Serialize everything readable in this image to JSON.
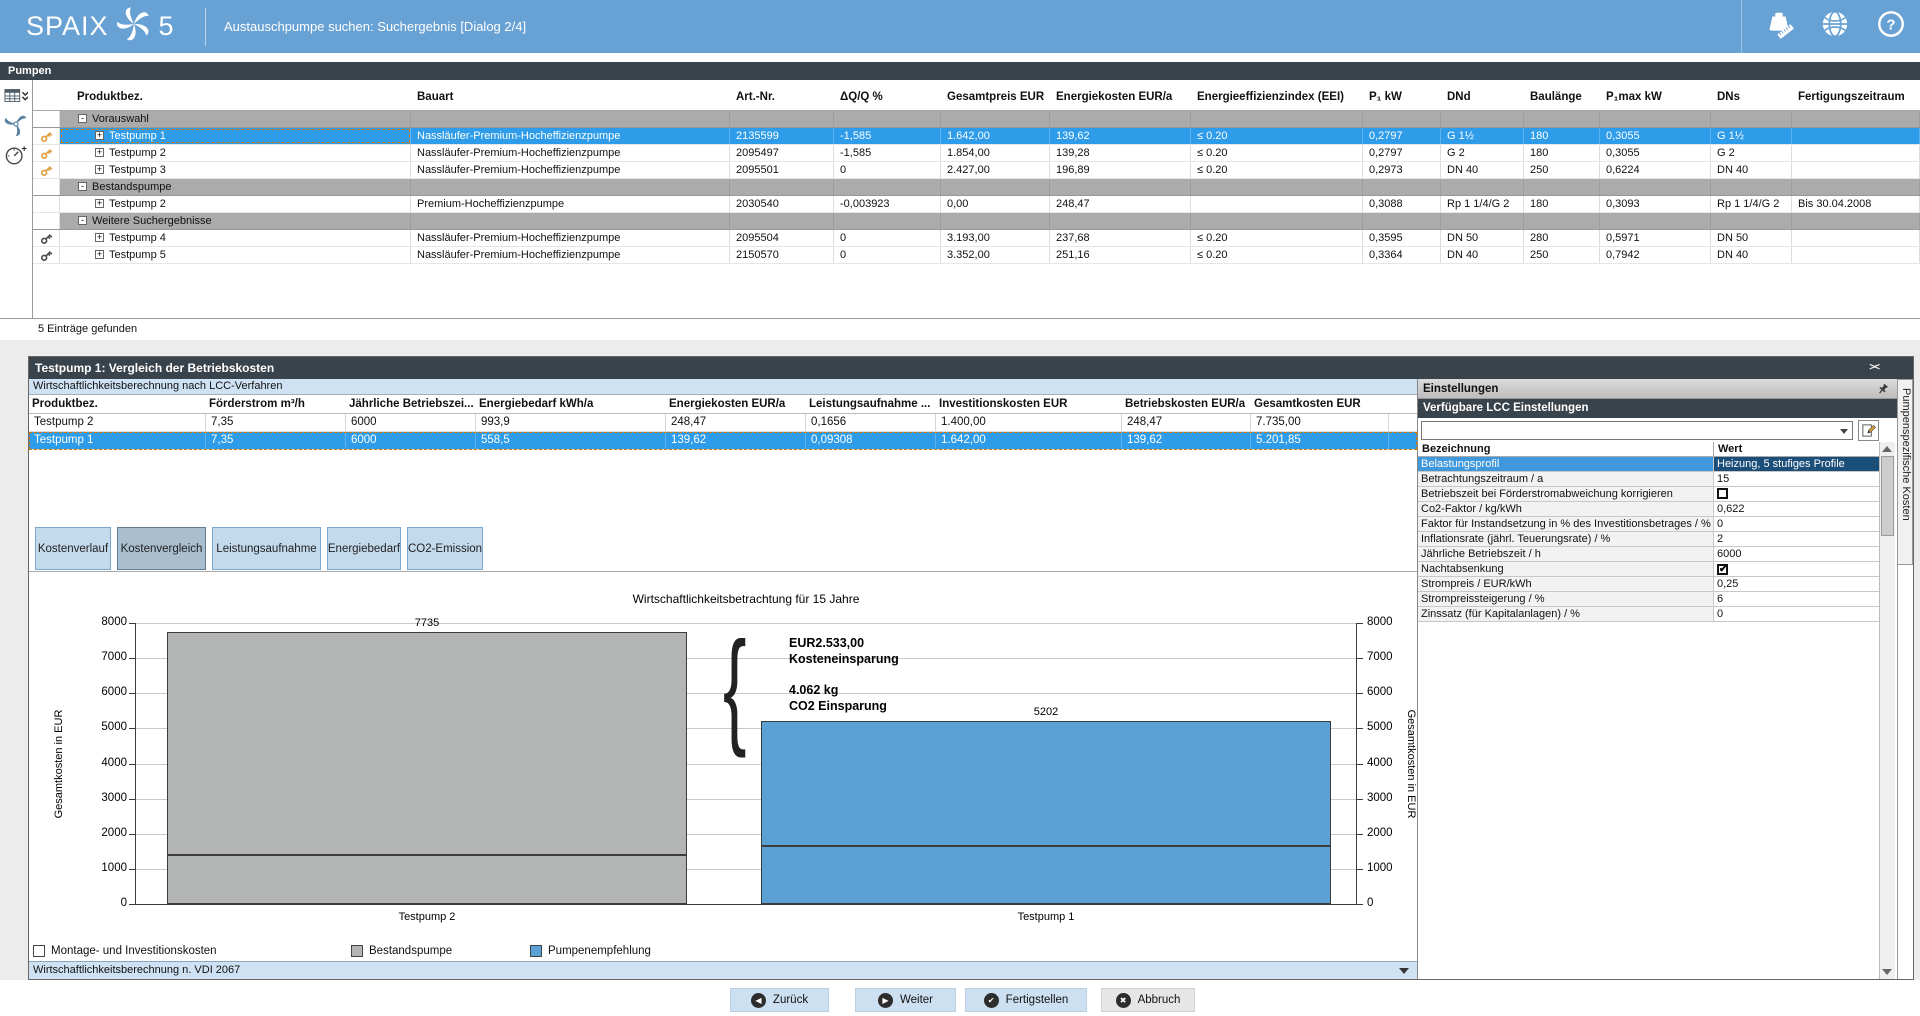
{
  "header": {
    "logo": "SPAIX",
    "logo_number": "5",
    "title": "Austauschpumpe suchen: Suchergebnis [Dialog 2/4]",
    "accent_color": "#68a1d4"
  },
  "tab_bar": {
    "label": "Pumpen"
  },
  "icons": {
    "topbar": [
      "units-icon",
      "globe-icon",
      "help-icon"
    ],
    "toolbar": [
      "table-columns-icon",
      "pump-icon",
      "gauge-plus-icon"
    ],
    "row_key_colors": {
      "orange": "#e09c3c",
      "dark": "#4a4a4a"
    }
  },
  "results_table": {
    "columns": [
      "Produktbez.",
      "Bauart",
      "Art.-Nr.",
      "ΔQ/Q %",
      "Gesamtpreis EUR",
      "Energiekosten EUR/a",
      "Energieeffizienzindex (EEI)",
      "P₁ kW",
      "DNd",
      "Baulänge",
      "P₁max kW",
      "DNs",
      "Fertigungszeitraum"
    ],
    "groups": [
      {
        "label": "Vorauswahl",
        "rows": [
          {
            "name": "Testpump 1",
            "selected": true,
            "key": "orange",
            "cells": [
              "Nassläufer-Premium-Hocheffizienzpumpe",
              "2135599",
              "-1,585",
              "1.642,00",
              "139,62",
              "≤ 0.20",
              "0,2797",
              "G 1½",
              "180",
              "0,3055",
              "G 1½",
              ""
            ]
          },
          {
            "name": "Testpump 2",
            "selected": false,
            "key": "orange",
            "cells": [
              "Nassläufer-Premium-Hocheffizienzpumpe",
              "2095497",
              "-1,585",
              "1.854,00",
              "139,28",
              "≤ 0.20",
              "0,2797",
              "G 2",
              "180",
              "0,3055",
              "G 2",
              ""
            ]
          },
          {
            "name": "Testpump 3",
            "selected": false,
            "key": "orange",
            "cells": [
              "Nassläufer-Premium-Hocheffizienzpumpe",
              "2095501",
              "0",
              "2.427,00",
              "196,89",
              "≤ 0.20",
              "0,2973",
              "DN 40",
              "250",
              "0,6224",
              "DN 40",
              ""
            ]
          }
        ]
      },
      {
        "label": "Bestandspumpe",
        "rows": [
          {
            "name": "Testpump 2",
            "selected": false,
            "key": "none",
            "cells": [
              "Premium-Hocheffizienzpumpe",
              "2030540",
              "-0,003923",
              "0,00",
              "248,47",
              "",
              "0,3088",
              "Rp 1 1/4/G 2",
              "180",
              "0,3093",
              "Rp 1 1/4/G 2",
              "Bis 30.04.2008"
            ]
          }
        ]
      },
      {
        "label": "Weitere Suchergebnisse",
        "rows": [
          {
            "name": "Testpump 4",
            "selected": false,
            "key": "dark",
            "cells": [
              "Nassläufer-Premium-Hocheffizienzpumpe",
              "2095504",
              "0",
              "3.193,00",
              "237,68",
              "≤ 0.20",
              "0,3595",
              "DN 50",
              "280",
              "0,5971",
              "DN 50",
              ""
            ]
          },
          {
            "name": "Testpump 5",
            "selected": false,
            "key": "dark",
            "cells": [
              "Nassläufer-Premium-Hocheffizienzpumpe",
              "2150570",
              "0",
              "3.352,00",
              "251,16",
              "≤ 0.20",
              "0,3364",
              "DN 40",
              "250",
              "0,7942",
              "DN 40",
              ""
            ]
          }
        ]
      }
    ],
    "status": "5 Einträge gefunden"
  },
  "comparison_panel": {
    "title": "Testpump 1: Vergleich der Betriebskosten",
    "subtitle": "Wirtschaftlichkeitsberechnung nach LCC-Verfahren",
    "collapse_glyph": "><",
    "table": {
      "columns": [
        "Produktbez.",
        "Förderstrom m³/h",
        "Jährliche Betriebszei...",
        "Energiebedarf kWh/a",
        "Energiekosten EUR/a",
        "Leistungsaufnahme ...",
        "Investitionskosten EUR",
        "Betriebskosten EUR/a",
        "Gesamtkosten EUR"
      ],
      "rows": [
        {
          "selected": false,
          "cells": [
            "Testpump 2",
            "7,35",
            "6000",
            "993,9",
            "248,47",
            "0,1656",
            "1.400,00",
            "248,47",
            "7.735,00"
          ]
        },
        {
          "selected": true,
          "cells": [
            "Testpump 1",
            "7,35",
            "6000",
            "558,5",
            "139,62",
            "0,09308",
            "1.642,00",
            "139,62",
            "5.201,85"
          ]
        }
      ]
    },
    "tabs": [
      {
        "label": "Kostenverlauf",
        "active": false
      },
      {
        "label": "Kostenvergleich",
        "active": true
      },
      {
        "label": "Leistungsaufnahme",
        "active": false
      },
      {
        "label": "Energiebedarf",
        "active": false
      },
      {
        "label": "CO2-Emission",
        "active": false
      }
    ],
    "footer": "Wirtschaftlichkeitsberechnung n. VDI 2067"
  },
  "chart_data": {
    "type": "bar",
    "title": "Wirtschaftlichkeitsbetrachtung für 15 Jahre",
    "categories": [
      "Testpump 2",
      "Testpump 1"
    ],
    "totals": [
      7735,
      5202
    ],
    "bar_total_labels": [
      "7735",
      "5202"
    ],
    "series": [
      {
        "name": "Montage- und Investitionskosten",
        "values": [
          1400,
          1642
        ],
        "pattern": "hatch"
      }
    ],
    "bar_colors": [
      "#b2b5b3",
      "#5ba1d6"
    ],
    "ylabel_left": "Gesamtkosten in EUR",
    "ylabel_right": "Gesamtkosten in EUR",
    "ylim": [
      0,
      8000
    ],
    "ytick_step": 1000,
    "grid": true,
    "legend": [
      {
        "label": "Montage- und Investitionskosten",
        "swatch": "hatch"
      },
      {
        "label": "Bestandspumpe",
        "swatch": "#b2b5b3"
      },
      {
        "label": "Pumpenempfehlung",
        "swatch": "#5ba1d6"
      }
    ],
    "annotations": [
      {
        "lines": [
          "EUR2.533,00",
          "Kosteneinsparung"
        ]
      },
      {
        "lines": [
          "4.062 kg",
          "CO2 Einsparung"
        ]
      }
    ]
  },
  "settings_panel": {
    "title": "Einstellungen",
    "subtitle": "Verfügbare LCC Einstellungen",
    "combo_value": "",
    "columns": [
      "Bezeichnung",
      "Wert"
    ],
    "rows": [
      {
        "label": "Belastungsprofil",
        "type": "text",
        "value": "Heizung, 5 stufiges Profile",
        "selected": true
      },
      {
        "label": "Betrachtungszeitraum / a",
        "type": "text",
        "value": "15",
        "selected": false
      },
      {
        "label": "Betriebszeit bei Förderstromabweichung korrigieren",
        "type": "checkbox",
        "checked": false,
        "selected": false
      },
      {
        "label": "Co2-Faktor / kg/kWh",
        "type": "text",
        "value": "0,622",
        "selected": false
      },
      {
        "label": "Faktor für Instandsetzung in % des Investitionsbetrages / %",
        "type": "text",
        "value": "0",
        "selected": false
      },
      {
        "label": "Inflationsrate (jährl. Teuerungsrate) / %",
        "type": "text",
        "value": "2",
        "selected": false
      },
      {
        "label": "Jährliche Betriebszeit / h",
        "type": "text",
        "value": "6000",
        "selected": false
      },
      {
        "label": "Nachtabsenkung",
        "type": "checkbox",
        "checked": true,
        "selected": false
      },
      {
        "label": "Strompreis / EUR/kWh",
        "type": "text",
        "value": "0,25",
        "selected": false
      },
      {
        "label": "Strompreissteigerung / %",
        "type": "text",
        "value": "6",
        "selected": false
      },
      {
        "label": "Zinssatz (für Kapitalanlagen) / %",
        "type": "text",
        "value": "0",
        "selected": false
      }
    ],
    "side_tab": "Pumpenspezifische Kosten"
  },
  "footer_buttons": [
    {
      "label": "Zurück",
      "icon": "arrow-left"
    },
    {
      "label": "Weiter",
      "icon": "arrow-right"
    },
    {
      "label": "Fertigstellen",
      "icon": "check"
    },
    {
      "label": "Abbruch",
      "icon": "x"
    }
  ]
}
